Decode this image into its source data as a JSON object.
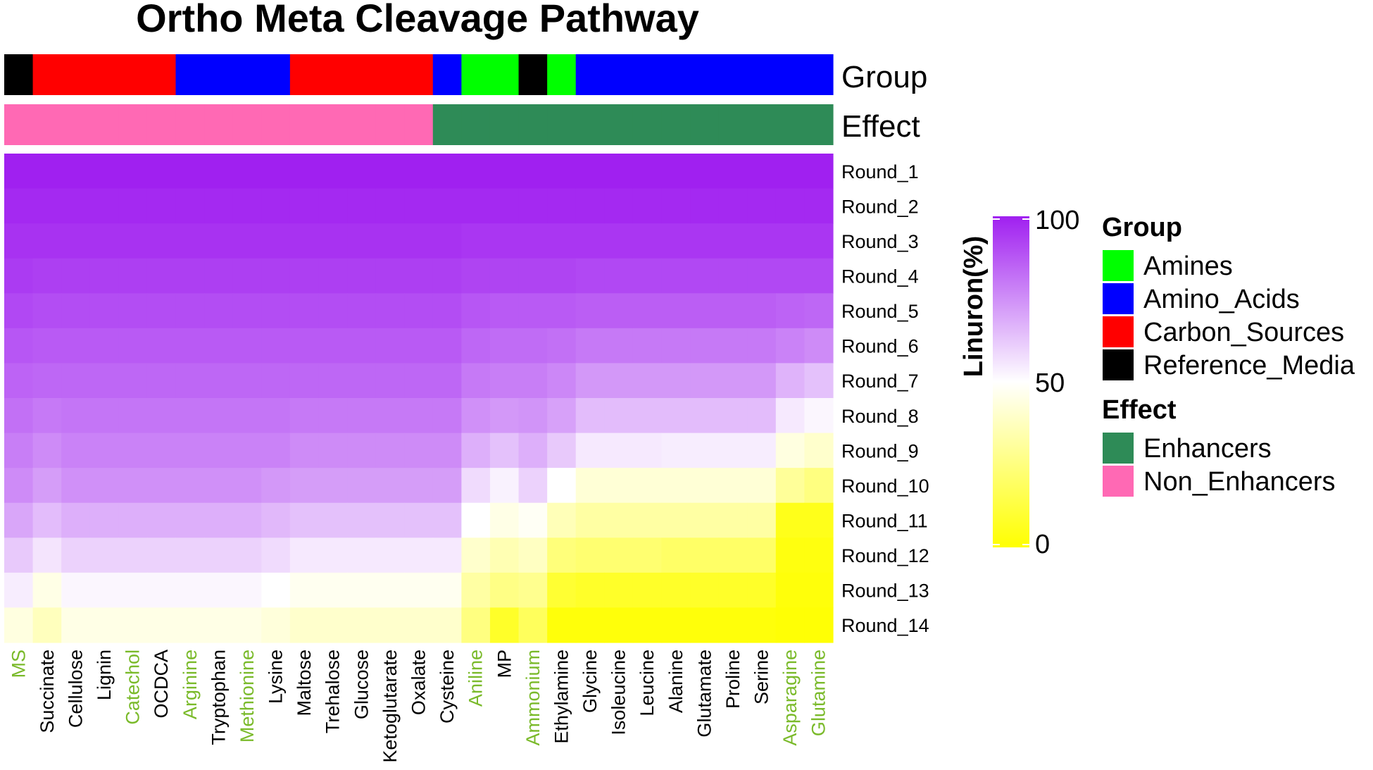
{
  "chart_data": {
    "type": "heatmap",
    "title": "Ortho Meta Cleavage Pathway",
    "columns": [
      "MS",
      "Succinate",
      "Cellulose",
      "Lignin",
      "Catechol",
      "OCDCA",
      "Arginine",
      "Tryptophan",
      "Methionine",
      "Lysine",
      "Maltose",
      "Trehalose",
      "Glucose",
      "Ketoglutarate",
      "Oxalate",
      "Cysteine",
      "Aniline",
      "MP",
      "Ammonium",
      "Ethylamine",
      "Glycine",
      "Isoleucine",
      "Leucine",
      "Alanine",
      "Glutamate",
      "Proline",
      "Serine",
      "Asparagine",
      "Glutamine"
    ],
    "column_label_colors": [
      "#7aba2a",
      "#000000",
      "#000000",
      "#000000",
      "#7aba2a",
      "#000000",
      "#7aba2a",
      "#000000",
      "#7aba2a",
      "#000000",
      "#000000",
      "#000000",
      "#000000",
      "#000000",
      "#000000",
      "#000000",
      "#7aba2a",
      "#000000",
      "#7aba2a",
      "#000000",
      "#000000",
      "#000000",
      "#000000",
      "#000000",
      "#000000",
      "#000000",
      "#000000",
      "#7aba2a",
      "#7aba2a"
    ],
    "rows": [
      "Round_1",
      "Round_2",
      "Round_3",
      "Round_4",
      "Round_5",
      "Round_6",
      "Round_7",
      "Round_8",
      "Round_9",
      "Round_10",
      "Round_11",
      "Round_12",
      "Round_13",
      "Round_14"
    ],
    "values": [
      [
        100,
        100,
        100,
        100,
        100,
        100,
        100,
        100,
        100,
        100,
        100,
        100,
        100,
        100,
        100,
        100,
        100,
        100,
        100,
        100,
        100,
        100,
        100,
        100,
        100,
        100,
        100,
        100,
        100
      ],
      [
        98,
        98,
        98,
        98,
        98,
        98,
        98,
        98,
        98,
        98,
        98,
        98,
        98,
        98,
        98,
        98,
        98,
        98,
        98,
        98,
        98,
        98,
        98,
        98,
        98,
        98,
        98,
        98,
        98
      ],
      [
        96,
        96,
        96,
        96,
        96,
        96,
        96,
        96,
        96,
        96,
        96,
        96,
        96,
        96,
        96,
        96,
        95,
        95,
        95,
        95,
        95,
        95,
        95,
        95,
        95,
        95,
        95,
        95,
        95
      ],
      [
        94,
        93,
        93,
        93,
        93,
        93,
        93,
        93,
        93,
        93,
        93,
        93,
        93,
        93,
        93,
        93,
        92,
        92,
        92,
        92,
        91,
        91,
        91,
        91,
        91,
        91,
        91,
        91,
        91
      ],
      [
        91,
        90,
        90,
        90,
        90,
        90,
        90,
        90,
        90,
        90,
        90,
        90,
        90,
        90,
        90,
        90,
        88,
        87,
        87,
        87,
        86,
        86,
        86,
        86,
        86,
        86,
        86,
        85,
        84
      ],
      [
        88,
        87,
        87,
        87,
        87,
        87,
        87,
        87,
        87,
        87,
        87,
        87,
        87,
        87,
        87,
        87,
        84,
        83,
        83,
        82,
        80,
        80,
        80,
        80,
        80,
        80,
        80,
        78,
        76
      ],
      [
        85,
        84,
        84,
        84,
        84,
        84,
        84,
        84,
        84,
        84,
        84,
        84,
        84,
        84,
        84,
        84,
        80,
        79,
        79,
        77,
        73,
        73,
        73,
        73,
        73,
        73,
        73,
        67,
        64
      ],
      [
        82,
        80,
        81,
        81,
        81,
        81,
        81,
        81,
        81,
        81,
        80,
        80,
        80,
        80,
        80,
        80,
        75,
        73,
        74,
        71,
        65,
        65,
        65,
        65,
        65,
        65,
        65,
        55,
        52
      ],
      [
        79,
        76,
        78,
        78,
        78,
        78,
        78,
        78,
        78,
        78,
        76,
        76,
        76,
        76,
        76,
        76,
        68,
        64,
        68,
        62,
        55,
        55,
        55,
        54,
        54,
        54,
        54,
        44,
        40
      ],
      [
        76,
        72,
        75,
        75,
        75,
        75,
        75,
        75,
        75,
        73,
        72,
        72,
        72,
        72,
        72,
        72,
        58,
        53,
        60,
        50,
        42,
        42,
        42,
        42,
        42,
        42,
        42,
        30,
        25
      ],
      [
        70,
        65,
        68,
        68,
        68,
        68,
        68,
        68,
        68,
        66,
        64,
        64,
        64,
        64,
        64,
        64,
        50,
        45,
        48,
        36,
        32,
        32,
        32,
        32,
        32,
        32,
        32,
        5,
        5
      ],
      [
        62,
        56,
        60,
        60,
        60,
        60,
        60,
        60,
        60,
        58,
        55,
        55,
        55,
        55,
        55,
        55,
        40,
        35,
        38,
        24,
        22,
        22,
        22,
        20,
        20,
        20,
        20,
        3,
        3
      ],
      [
        54,
        45,
        52,
        52,
        52,
        52,
        52,
        52,
        52,
        50,
        47,
        47,
        47,
        47,
        47,
        47,
        32,
        26,
        28,
        10,
        8,
        8,
        8,
        8,
        8,
        8,
        8,
        2,
        2
      ],
      [
        44,
        37,
        45,
        45,
        45,
        45,
        45,
        45,
        45,
        43,
        40,
        40,
        40,
        40,
        40,
        40,
        25,
        8,
        18,
        2,
        2,
        2,
        2,
        2,
        2,
        2,
        2,
        1,
        1
      ]
    ],
    "group_annotation": {
      "label": "Group",
      "values": [
        "Reference_Media",
        "Carbon_Sources",
        "Carbon_Sources",
        "Carbon_Sources",
        "Carbon_Sources",
        "Carbon_Sources",
        "Amino_Acids",
        "Amino_Acids",
        "Amino_Acids",
        "Amino_Acids",
        "Carbon_Sources",
        "Carbon_Sources",
        "Carbon_Sources",
        "Carbon_Sources",
        "Carbon_Sources",
        "Amino_Acids",
        "Amines",
        "Amines",
        "Reference_Media",
        "Amines",
        "Amino_Acids",
        "Amino_Acids",
        "Amino_Acids",
        "Amino_Acids",
        "Amino_Acids",
        "Amino_Acids",
        "Amino_Acids",
        "Amino_Acids",
        "Amino_Acids"
      ]
    },
    "effect_annotation": {
      "label": "Effect",
      "values": [
        "Non_Enhancers",
        "Non_Enhancers",
        "Non_Enhancers",
        "Non_Enhancers",
        "Non_Enhancers",
        "Non_Enhancers",
        "Non_Enhancers",
        "Non_Enhancers",
        "Non_Enhancers",
        "Non_Enhancers",
        "Non_Enhancers",
        "Non_Enhancers",
        "Non_Enhancers",
        "Non_Enhancers",
        "Non_Enhancers",
        "Enhancers",
        "Enhancers",
        "Enhancers",
        "Enhancers",
        "Enhancers",
        "Enhancers",
        "Enhancers",
        "Enhancers",
        "Enhancers",
        "Enhancers",
        "Enhancers",
        "Enhancers",
        "Enhancers",
        "Enhancers"
      ]
    },
    "colorbar": {
      "title": "Linuron(%)",
      "range": [
        0,
        100
      ],
      "ticks": [
        "100",
        "50",
        "0"
      ],
      "low_color": "#ffff00",
      "mid_color": "#ffffff",
      "high_color": "#a020f0"
    },
    "legend": {
      "group_title": "Group",
      "group_items": [
        {
          "label": "Amines",
          "color": "#00ff00"
        },
        {
          "label": "Amino_Acids",
          "color": "#0000ff"
        },
        {
          "label": "Carbon_Sources",
          "color": "#ff0000"
        },
        {
          "label": "Reference_Media",
          "color": "#000000"
        }
      ],
      "effect_title": "Effect",
      "effect_items": [
        {
          "label": "Enhancers",
          "color": "#2e8b57"
        },
        {
          "label": "Non_Enhancers",
          "color": "#ff69b4"
        }
      ]
    }
  }
}
